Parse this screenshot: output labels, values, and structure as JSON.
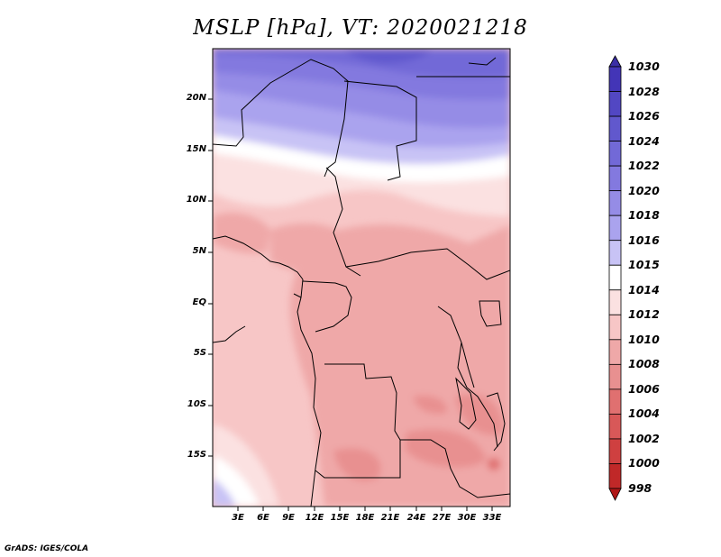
{
  "title": "MSLP [hPa], VT: 2020021218",
  "footer": "GrADS: IGES/COLA",
  "lat_labels": [
    "20N",
    "15N",
    "10N",
    "5N",
    "EQ",
    "5S",
    "10S",
    "15S"
  ],
  "lon_labels": [
    "3E",
    "6E",
    "9E",
    "12E",
    "15E",
    "18E",
    "21E",
    "24E",
    "27E",
    "30E",
    "33E"
  ],
  "colorbar": {
    "labels": [
      "1030",
      "1028",
      "1026",
      "1024",
      "1022",
      "1020",
      "1018",
      "1016",
      "1015",
      "1014",
      "1012",
      "1010",
      "1008",
      "1006",
      "1004",
      "1002",
      "1000",
      "998"
    ],
    "colors": [
      "#3b2fa6",
      "#4335b7",
      "#5247c3",
      "#6158cd",
      "#7269d7",
      "#8379df",
      "#958ce6",
      "#aaa3ee",
      "#c8c3f5",
      "#ffffff",
      "#fbe1e1",
      "#f7c6c6",
      "#efa8a8",
      "#e89090",
      "#e07070",
      "#d85858",
      "#cf4040",
      "#c02828",
      "#b01818"
    ]
  },
  "map": {
    "lat_range": [
      -20,
      24.5
    ],
    "lon_range": [
      0,
      35
    ],
    "features": [
      "coastlines",
      "country-borders",
      "filled-pressure-contours"
    ]
  }
}
